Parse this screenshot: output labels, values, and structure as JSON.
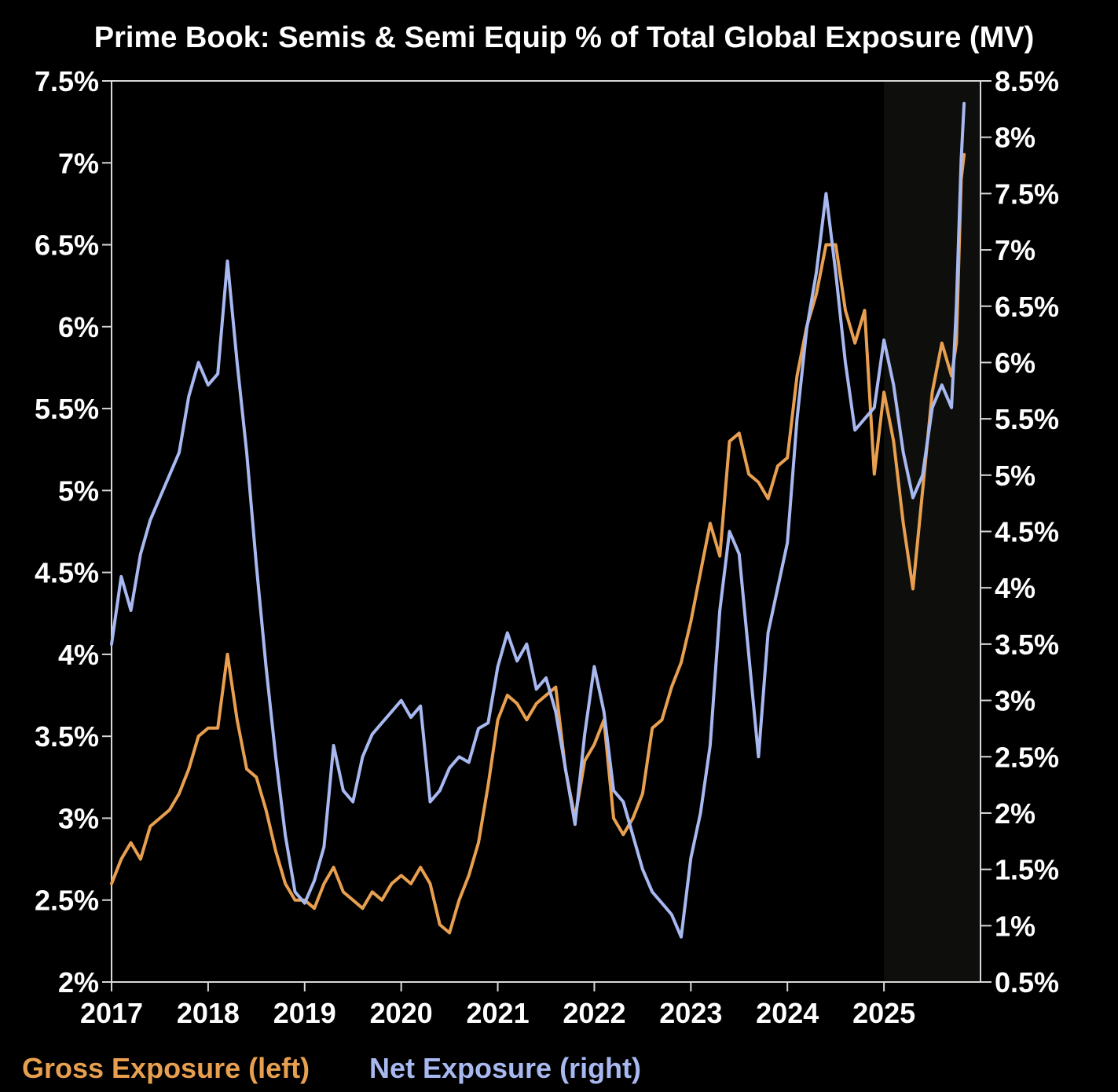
{
  "chart_data": {
    "type": "line",
    "title": "Prime Book: Semis & Semi Equip % of Total Global Exposure (MV)",
    "x_ticks": [
      "2017",
      "2018",
      "2019",
      "2020",
      "2021",
      "2022",
      "2023",
      "2024",
      "2025"
    ],
    "x_range": [
      2017.0,
      2026.0
    ],
    "left_axis": {
      "ylim": [
        2.0,
        7.5
      ],
      "ticks": [
        "2%",
        "2.5%",
        "3%",
        "3.5%",
        "4%",
        "4.5%",
        "5%",
        "5.5%",
        "6%",
        "6.5%",
        "7%",
        "7.5%"
      ],
      "tick_values": [
        2.0,
        2.5,
        3.0,
        3.5,
        4.0,
        4.5,
        5.0,
        5.5,
        6.0,
        6.5,
        7.0,
        7.5
      ]
    },
    "right_axis": {
      "ylim": [
        0.5,
        8.5
      ],
      "ticks": [
        "0.5%",
        "1%",
        "1.5%",
        "2%",
        "2.5%",
        "3%",
        "3.5%",
        "4%",
        "4.5%",
        "5%",
        "5.5%",
        "6%",
        "6.5%",
        "7%",
        "7.5%",
        "8%",
        "8.5%"
      ],
      "tick_values": [
        0.5,
        1.0,
        1.5,
        2.0,
        2.5,
        3.0,
        3.5,
        4.0,
        4.5,
        5.0,
        5.5,
        6.0,
        6.5,
        7.0,
        7.5,
        8.0,
        8.5
      ]
    },
    "shaded_region": {
      "x_start": 2025.0,
      "x_end": 2026.0
    },
    "series": [
      {
        "name": "Gross Exposure (left)",
        "axis": "left",
        "color": "#e8a050",
        "points": [
          [
            2017.0,
            2.6
          ],
          [
            2017.1,
            2.75
          ],
          [
            2017.2,
            2.85
          ],
          [
            2017.3,
            2.75
          ],
          [
            2017.4,
            2.95
          ],
          [
            2017.5,
            3.0
          ],
          [
            2017.6,
            3.05
          ],
          [
            2017.7,
            3.15
          ],
          [
            2017.8,
            3.3
          ],
          [
            2017.9,
            3.5
          ],
          [
            2018.0,
            3.55
          ],
          [
            2018.1,
            3.55
          ],
          [
            2018.2,
            4.0
          ],
          [
            2018.3,
            3.6
          ],
          [
            2018.4,
            3.3
          ],
          [
            2018.5,
            3.25
          ],
          [
            2018.6,
            3.05
          ],
          [
            2018.7,
            2.8
          ],
          [
            2018.8,
            2.6
          ],
          [
            2018.9,
            2.5
          ],
          [
            2019.0,
            2.5
          ],
          [
            2019.1,
            2.45
          ],
          [
            2019.2,
            2.6
          ],
          [
            2019.3,
            2.7
          ],
          [
            2019.4,
            2.55
          ],
          [
            2019.5,
            2.5
          ],
          [
            2019.6,
            2.45
          ],
          [
            2019.7,
            2.55
          ],
          [
            2019.8,
            2.5
          ],
          [
            2019.9,
            2.6
          ],
          [
            2020.0,
            2.65
          ],
          [
            2020.1,
            2.6
          ],
          [
            2020.2,
            2.7
          ],
          [
            2020.3,
            2.6
          ],
          [
            2020.4,
            2.35
          ],
          [
            2020.5,
            2.3
          ],
          [
            2020.6,
            2.5
          ],
          [
            2020.7,
            2.65
          ],
          [
            2020.8,
            2.85
          ],
          [
            2020.9,
            3.2
          ],
          [
            2021.0,
            3.6
          ],
          [
            2021.1,
            3.75
          ],
          [
            2021.2,
            3.7
          ],
          [
            2021.3,
            3.6
          ],
          [
            2021.4,
            3.7
          ],
          [
            2021.5,
            3.75
          ],
          [
            2021.6,
            3.8
          ],
          [
            2021.7,
            3.3
          ],
          [
            2021.8,
            3.0
          ],
          [
            2021.9,
            3.35
          ],
          [
            2022.0,
            3.45
          ],
          [
            2022.1,
            3.6
          ],
          [
            2022.2,
            3.0
          ],
          [
            2022.3,
            2.9
          ],
          [
            2022.4,
            3.0
          ],
          [
            2022.5,
            3.15
          ],
          [
            2022.6,
            3.55
          ],
          [
            2022.7,
            3.6
          ],
          [
            2022.8,
            3.8
          ],
          [
            2022.9,
            3.95
          ],
          [
            2023.0,
            4.2
          ],
          [
            2023.1,
            4.5
          ],
          [
            2023.2,
            4.8
          ],
          [
            2023.3,
            4.6
          ],
          [
            2023.4,
            5.3
          ],
          [
            2023.5,
            5.35
          ],
          [
            2023.6,
            5.1
          ],
          [
            2023.7,
            5.05
          ],
          [
            2023.8,
            4.95
          ],
          [
            2023.9,
            5.15
          ],
          [
            2024.0,
            5.2
          ],
          [
            2024.1,
            5.7
          ],
          [
            2024.2,
            6.0
          ],
          [
            2024.3,
            6.2
          ],
          [
            2024.4,
            6.5
          ],
          [
            2024.5,
            6.5
          ],
          [
            2024.6,
            6.1
          ],
          [
            2024.7,
            5.9
          ],
          [
            2024.8,
            6.1
          ],
          [
            2024.9,
            5.1
          ],
          [
            2025.0,
            5.6
          ],
          [
            2025.1,
            5.3
          ],
          [
            2025.2,
            4.8
          ],
          [
            2025.3,
            4.4
          ],
          [
            2025.4,
            5.0
          ],
          [
            2025.5,
            5.6
          ],
          [
            2025.6,
            5.9
          ],
          [
            2025.7,
            5.7
          ],
          [
            2025.75,
            5.9
          ],
          [
            2025.8,
            6.9
          ],
          [
            2025.83,
            7.05
          ]
        ]
      },
      {
        "name": "Net Exposure (right)",
        "axis": "right",
        "color": "#a8b8f0",
        "points": [
          [
            2017.0,
            3.5
          ],
          [
            2017.1,
            4.1
          ],
          [
            2017.2,
            3.8
          ],
          [
            2017.3,
            4.3
          ],
          [
            2017.4,
            4.6
          ],
          [
            2017.5,
            4.8
          ],
          [
            2017.6,
            5.0
          ],
          [
            2017.7,
            5.2
          ],
          [
            2017.8,
            5.7
          ],
          [
            2017.9,
            6.0
          ],
          [
            2018.0,
            5.8
          ],
          [
            2018.1,
            5.9
          ],
          [
            2018.2,
            6.9
          ],
          [
            2018.3,
            6.0
          ],
          [
            2018.4,
            5.2
          ],
          [
            2018.5,
            4.2
          ],
          [
            2018.6,
            3.3
          ],
          [
            2018.7,
            2.5
          ],
          [
            2018.8,
            1.8
          ],
          [
            2018.9,
            1.3
          ],
          [
            2019.0,
            1.2
          ],
          [
            2019.1,
            1.4
          ],
          [
            2019.2,
            1.7
          ],
          [
            2019.3,
            2.6
          ],
          [
            2019.4,
            2.2
          ],
          [
            2019.5,
            2.1
          ],
          [
            2019.6,
            2.5
          ],
          [
            2019.7,
            2.7
          ],
          [
            2019.8,
            2.8
          ],
          [
            2019.9,
            2.9
          ],
          [
            2020.0,
            3.0
          ],
          [
            2020.1,
            2.85
          ],
          [
            2020.2,
            2.95
          ],
          [
            2020.3,
            2.1
          ],
          [
            2020.4,
            2.2
          ],
          [
            2020.5,
            2.4
          ],
          [
            2020.6,
            2.5
          ],
          [
            2020.7,
            2.45
          ],
          [
            2020.8,
            2.75
          ],
          [
            2020.9,
            2.8
          ],
          [
            2021.0,
            3.3
          ],
          [
            2021.1,
            3.6
          ],
          [
            2021.2,
            3.35
          ],
          [
            2021.3,
            3.5
          ],
          [
            2021.4,
            3.1
          ],
          [
            2021.5,
            3.2
          ],
          [
            2021.6,
            2.9
          ],
          [
            2021.7,
            2.4
          ],
          [
            2021.8,
            1.9
          ],
          [
            2021.9,
            2.7
          ],
          [
            2022.0,
            3.3
          ],
          [
            2022.1,
            2.9
          ],
          [
            2022.2,
            2.2
          ],
          [
            2022.3,
            2.1
          ],
          [
            2022.4,
            1.8
          ],
          [
            2022.5,
            1.5
          ],
          [
            2022.6,
            1.3
          ],
          [
            2022.7,
            1.2
          ],
          [
            2022.8,
            1.1
          ],
          [
            2022.9,
            0.9
          ],
          [
            2023.0,
            1.6
          ],
          [
            2023.1,
            2.0
          ],
          [
            2023.2,
            2.6
          ],
          [
            2023.3,
            3.8
          ],
          [
            2023.4,
            4.5
          ],
          [
            2023.5,
            4.3
          ],
          [
            2023.6,
            3.4
          ],
          [
            2023.7,
            2.5
          ],
          [
            2023.8,
            3.6
          ],
          [
            2023.9,
            4.0
          ],
          [
            2024.0,
            4.4
          ],
          [
            2024.1,
            5.5
          ],
          [
            2024.2,
            6.3
          ],
          [
            2024.3,
            6.8
          ],
          [
            2024.4,
            7.5
          ],
          [
            2024.5,
            6.8
          ],
          [
            2024.6,
            6.0
          ],
          [
            2024.7,
            5.4
          ],
          [
            2024.8,
            5.5
          ],
          [
            2024.9,
            5.6
          ],
          [
            2025.0,
            6.2
          ],
          [
            2025.1,
            5.8
          ],
          [
            2025.2,
            5.2
          ],
          [
            2025.3,
            4.8
          ],
          [
            2025.4,
            5.0
          ],
          [
            2025.5,
            5.6
          ],
          [
            2025.6,
            5.8
          ],
          [
            2025.7,
            5.6
          ],
          [
            2025.75,
            6.5
          ],
          [
            2025.8,
            7.8
          ],
          [
            2025.83,
            8.3
          ]
        ]
      }
    ],
    "legend": [
      {
        "label": "Gross Exposure (left)",
        "color": "#e8a050"
      },
      {
        "label": "Net Exposure (right)",
        "color": "#a8b8f0"
      }
    ]
  }
}
